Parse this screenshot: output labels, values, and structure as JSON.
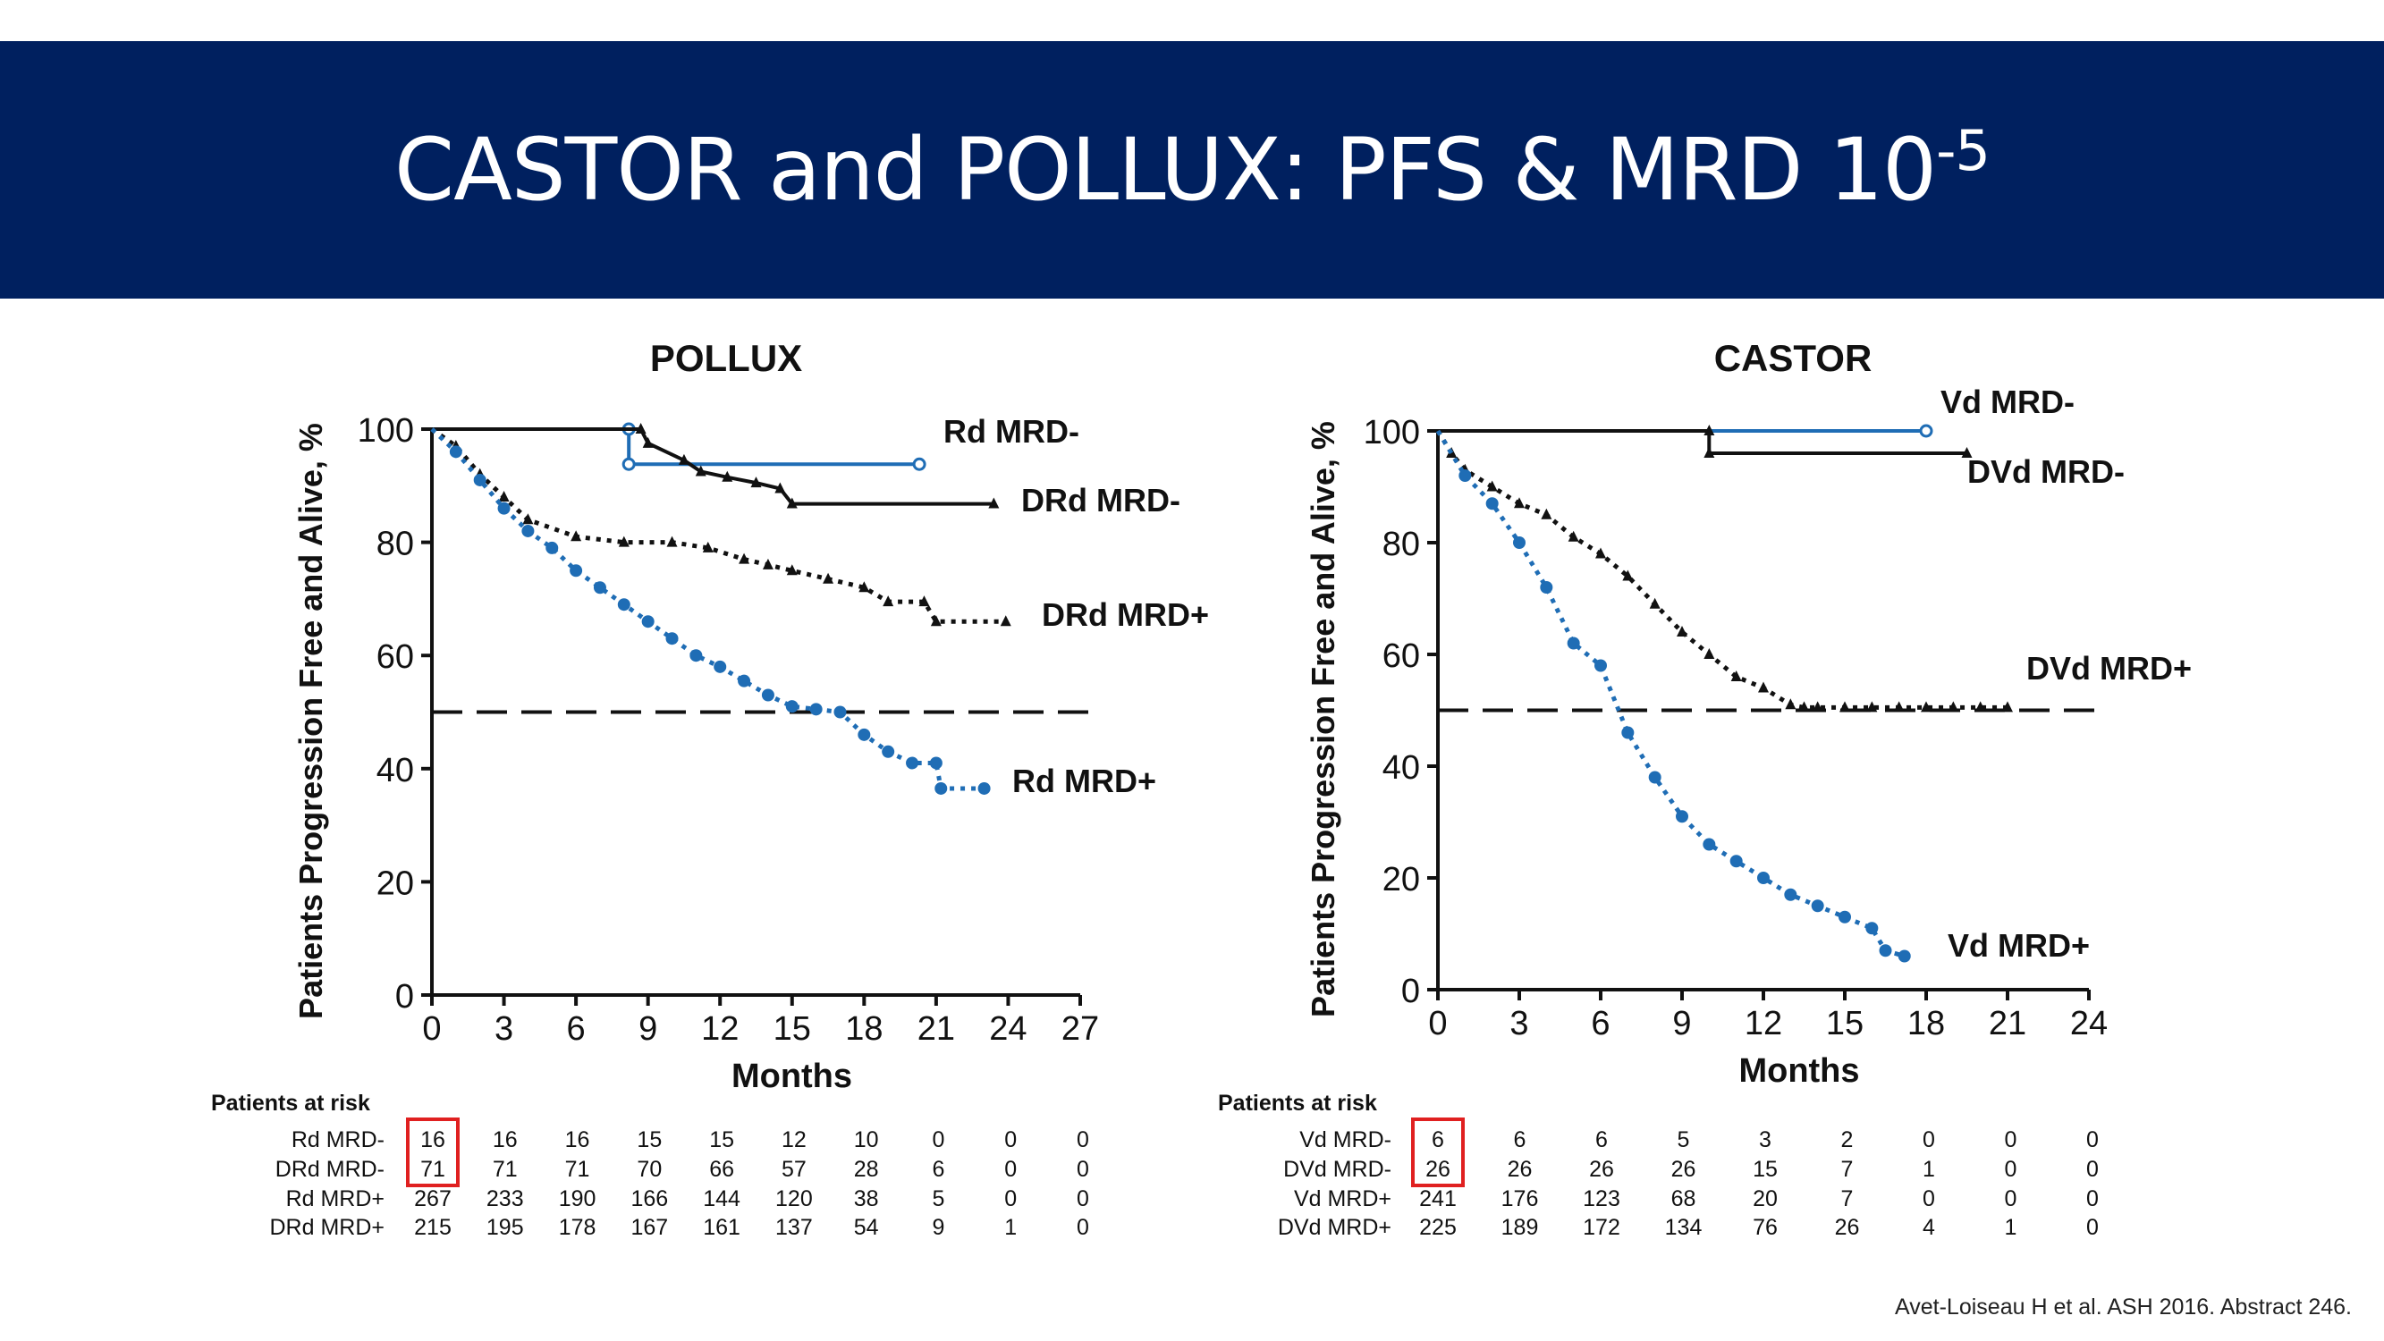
{
  "slide": {
    "title_main": "CASTOR and POLLUX: PFS & MRD 10",
    "title_sup": "-5",
    "citation": "Avet-Loiseau H et al. ASH 2016. Abstract 246."
  },
  "colors": {
    "banner": "#00205f",
    "blue_series": "#1f6db5",
    "black_series": "#111111",
    "highlight_box": "#e02020"
  },
  "chart_data": [
    {
      "type": "line",
      "title": "POLLUX",
      "xlabel": "Months",
      "ylabel": "Patients Progression Free and Alive, %",
      "xlim": [
        0,
        27
      ],
      "ylim": [
        0,
        100
      ],
      "xticks": [
        0,
        3,
        6,
        9,
        12,
        15,
        18,
        21,
        24,
        27
      ],
      "yticks": [
        0,
        20,
        40,
        60,
        80,
        100
      ],
      "reference_line": 50,
      "series": [
        {
          "name": "Rd MRD-",
          "color": "#1f6db5",
          "style": "solid",
          "marker": "open-circle",
          "x": [
            0,
            8.2,
            8.2,
            20.3
          ],
          "y": [
            100,
            100,
            93.8,
            93.8
          ]
        },
        {
          "name": "DRd MRD-",
          "color": "#111111",
          "style": "solid",
          "marker": "triangle",
          "x": [
            0,
            8.7,
            9.0,
            10.5,
            11.2,
            12.3,
            13.5,
            14.5,
            15.0,
            23.4
          ],
          "y": [
            100,
            100,
            97.5,
            94.5,
            92.5,
            91.5,
            90.5,
            89.5,
            86.8,
            86.8
          ]
        },
        {
          "name": "DRd MRD+",
          "color": "#111111",
          "style": "dotted",
          "marker": "triangle",
          "x": [
            0,
            1,
            2,
            3,
            4,
            6,
            8,
            10,
            11.5,
            13,
            14,
            15,
            16.5,
            18,
            19,
            20.5,
            21,
            23.9
          ],
          "y": [
            100,
            97,
            92,
            88,
            84,
            81,
            80,
            80,
            79,
            77,
            76,
            75,
            73.5,
            72,
            69.5,
            69.5,
            66,
            66
          ]
        },
        {
          "name": "Rd MRD+",
          "color": "#1f6db5",
          "style": "dotted",
          "marker": "filled-circle",
          "x": [
            0,
            1,
            2,
            3,
            4,
            5,
            6,
            7,
            8,
            9,
            10,
            11,
            12,
            13,
            14,
            15,
            16,
            17,
            18,
            19,
            20,
            21,
            21.2,
            23.0
          ],
          "y": [
            100,
            96,
            91,
            86,
            82,
            79,
            75,
            72,
            69,
            66,
            63,
            60,
            58,
            55.5,
            53,
            51,
            50.5,
            50,
            46,
            43,
            41,
            41,
            36.5,
            36.5
          ]
        }
      ],
      "series_labels": [
        "Rd MRD-",
        "DRd MRD-",
        "DRd MRD+",
        "Rd MRD+"
      ],
      "risk_table": {
        "header": "Patients at risk",
        "x_months": [
          0,
          3,
          6,
          9,
          12,
          15,
          18,
          21,
          24,
          27
        ],
        "rows": [
          {
            "label": "Rd MRD-",
            "values": [
              "16",
              "16",
              "16",
              "15",
              "15",
              "12",
              "10",
              "0",
              "0",
              "0"
            ]
          },
          {
            "label": "DRd MRD-",
            "values": [
              "71",
              "71",
              "71",
              "70",
              "66",
              "57",
              "28",
              "6",
              "0",
              "0"
            ]
          },
          {
            "label": "Rd MRD+",
            "values": [
              "267",
              "233",
              "190",
              "166",
              "144",
              "120",
              "38",
              "5",
              "0",
              "0"
            ]
          },
          {
            "label": "DRd MRD+",
            "values": [
              "215",
              "195",
              "178",
              "167",
              "161",
              "137",
              "54",
              "9",
              "1",
              "0"
            ]
          }
        ],
        "highlighted": {
          "rows": [
            0,
            1
          ],
          "column": 0
        }
      }
    },
    {
      "type": "line",
      "title": "CASTOR",
      "xlabel": "Months",
      "ylabel": "Patients Progression Free and Alive, %",
      "xlim": [
        0,
        24
      ],
      "ylim": [
        0,
        100
      ],
      "xticks": [
        0,
        3,
        6,
        9,
        12,
        15,
        18,
        21,
        24
      ],
      "yticks": [
        0,
        20,
        40,
        60,
        80,
        100
      ],
      "reference_line": 50,
      "series": [
        {
          "name": "Vd MRD-",
          "color": "#1f6db5",
          "style": "solid",
          "marker": "open-circle",
          "x": [
            0,
            18.0
          ],
          "y": [
            100,
            100
          ]
        },
        {
          "name": "DVd MRD-",
          "color": "#111111",
          "style": "solid",
          "marker": "triangle",
          "x": [
            0,
            10.0,
            10.0,
            19.5
          ],
          "y": [
            100,
            100,
            96,
            96
          ]
        },
        {
          "name": "DVd MRD+",
          "color": "#111111",
          "style": "dotted",
          "marker": "triangle",
          "x": [
            0,
            0.5,
            1,
            2,
            3,
            4,
            5,
            6,
            7,
            8,
            9,
            10,
            11,
            12,
            13,
            13.5,
            14,
            15,
            16,
            17,
            18,
            19,
            20,
            21
          ],
          "y": [
            100,
            96,
            93,
            90,
            87,
            85,
            81,
            78,
            74,
            69,
            64,
            60,
            56,
            54,
            51,
            50.5,
            50.5,
            50.5,
            50.5,
            50.5,
            50.5,
            50.5,
            50.5,
            50.5
          ]
        },
        {
          "name": "Vd MRD+",
          "color": "#1f6db5",
          "style": "dotted",
          "marker": "filled-circle",
          "x": [
            0,
            1,
            2,
            3,
            4,
            5,
            6,
            7,
            8,
            9,
            10,
            11,
            12,
            13,
            14,
            15,
            16,
            16.5,
            17.2
          ],
          "y": [
            100,
            92,
            87,
            80,
            72,
            62,
            58,
            46,
            38,
            31,
            26,
            23,
            20,
            17,
            15,
            13,
            11,
            7,
            6
          ]
        }
      ],
      "series_labels": [
        "Vd MRD-",
        "DVd MRD-",
        "DVd MRD+",
        "Vd MRD+"
      ],
      "risk_table": {
        "header": "Patients at risk",
        "x_months": [
          0,
          3,
          6,
          9,
          12,
          15,
          18,
          21,
          24
        ],
        "rows": [
          {
            "label": "Vd MRD-",
            "values": [
              "6",
              "6",
              "6",
              "5",
              "3",
              "2",
              "0",
              "0",
              "0"
            ]
          },
          {
            "label": "DVd MRD-",
            "values": [
              "26",
              "26",
              "26",
              "26",
              "15",
              "7",
              "1",
              "0",
              "0"
            ]
          },
          {
            "label": "Vd MRD+",
            "values": [
              "241",
              "176",
              "123",
              "68",
              "20",
              "7",
              "0",
              "0",
              "0"
            ]
          },
          {
            "label": "DVd MRD+",
            "values": [
              "225",
              "189",
              "172",
              "134",
              "76",
              "26",
              "4",
              "1",
              "0"
            ]
          }
        ],
        "highlighted": {
          "rows": [
            0,
            1
          ],
          "column": 0
        }
      }
    }
  ]
}
